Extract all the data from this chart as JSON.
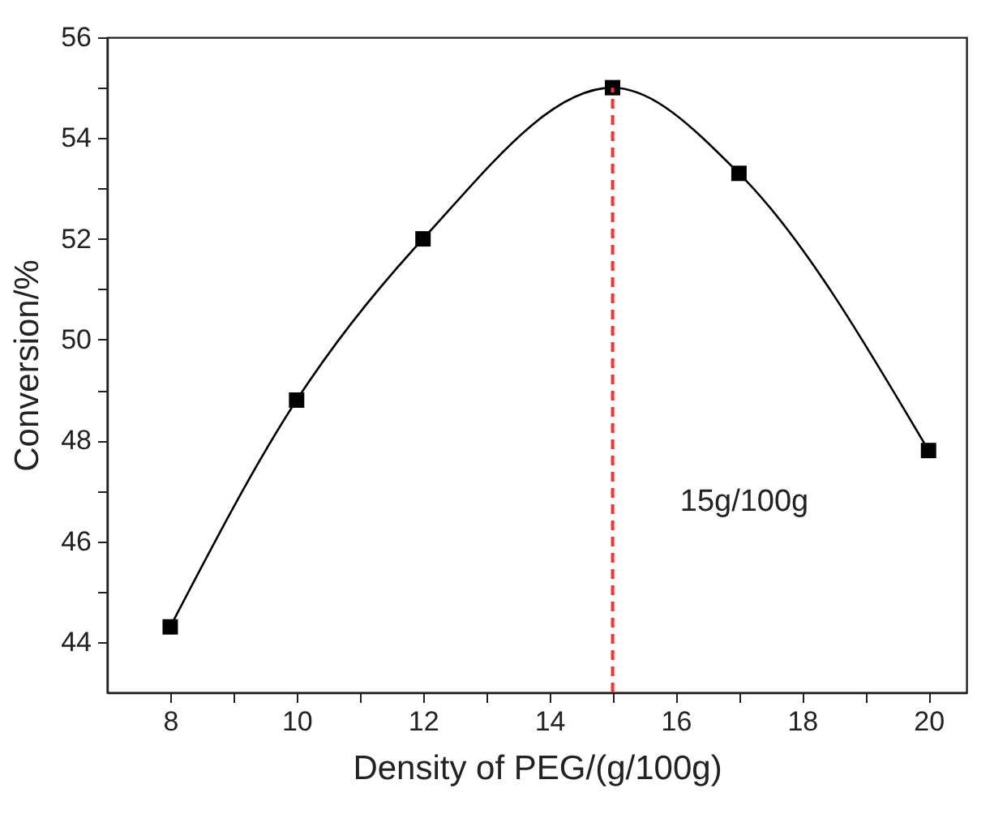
{
  "chart_data": {
    "type": "line",
    "xlabel": "Density of PEG/(g/100g)",
    "ylabel": "Conversion/%",
    "x": [
      8,
      10,
      12,
      15,
      17,
      20
    ],
    "series": [
      {
        "color": "#000000",
        "values": [
          44.3,
          48.8,
          52.0,
          55.0,
          53.3,
          47.8
        ]
      }
    ],
    "marker": "square",
    "xlim": [
      7,
      20.6
    ],
    "ylim": [
      43,
      56
    ],
    "xticks": [
      8,
      {
        "value": 9,
        "label": null
      },
      10,
      {
        "value": 11,
        "label": null
      },
      12,
      {
        "value": 13,
        "label": null
      },
      14,
      {
        "value": 15,
        "label": null
      },
      16,
      {
        "value": 17,
        "label": null
      },
      18,
      {
        "value": 19,
        "label": null
      },
      20
    ],
    "yticks": [
      44,
      {
        "value": 45,
        "label": null
      },
      46,
      {
        "value": 47,
        "label": null
      },
      48,
      {
        "value": 49,
        "label": null
      },
      50,
      {
        "value": 51,
        "label": null
      },
      52,
      {
        "value": 53,
        "label": null
      },
      54,
      {
        "value": 55,
        "label": null
      },
      56
    ],
    "ref_lines": [
      {
        "axis": "x",
        "value": 15,
        "color": "#ff3333",
        "line_style": "dashed"
      }
    ],
    "annotations": [
      "15g/100g"
    ]
  }
}
